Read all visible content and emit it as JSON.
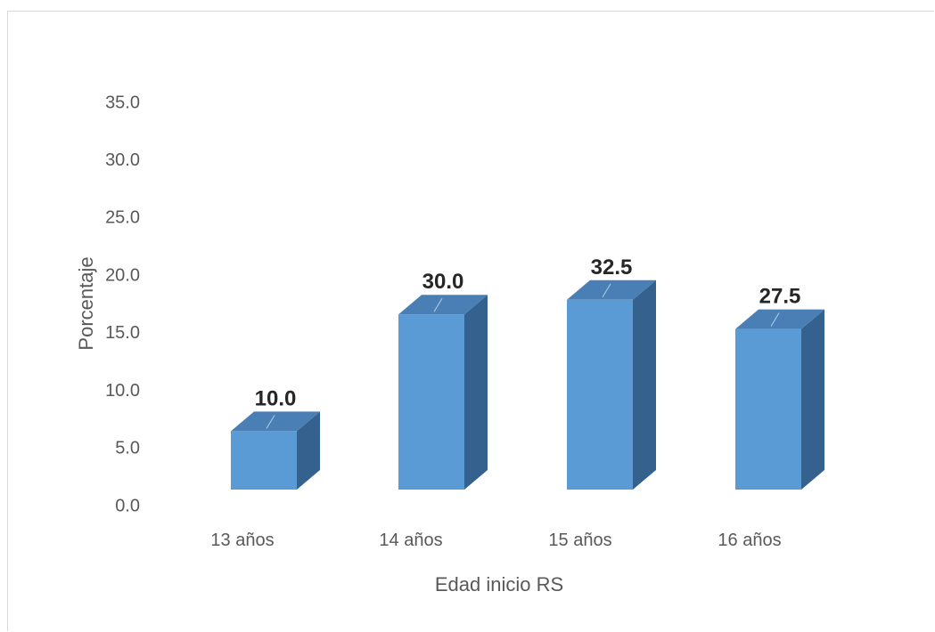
{
  "chart_data": {
    "type": "bar",
    "style": "3d-column",
    "title": "",
    "xlabel": "Edad inicio RS",
    "ylabel": "Porcentaje",
    "categories": [
      "13 años",
      "14 años",
      "15 años",
      "16 años"
    ],
    "values": [
      10.0,
      30.0,
      32.5,
      27.5
    ],
    "data_labels": [
      "10.0",
      "30.0",
      "32.5",
      "27.5"
    ],
    "yticks": [
      "0.0",
      "5.0",
      "10.0",
      "15.0",
      "20.0",
      "25.0",
      "30.0",
      "35.0"
    ],
    "ylim": [
      0,
      35
    ],
    "grid": false,
    "legend": "none",
    "colors": {
      "bar_front": "#5b9bd5",
      "bar_top": "#4a7fb5",
      "bar_side": "#35618e",
      "text": "#595959",
      "data_label": "#262626"
    }
  }
}
